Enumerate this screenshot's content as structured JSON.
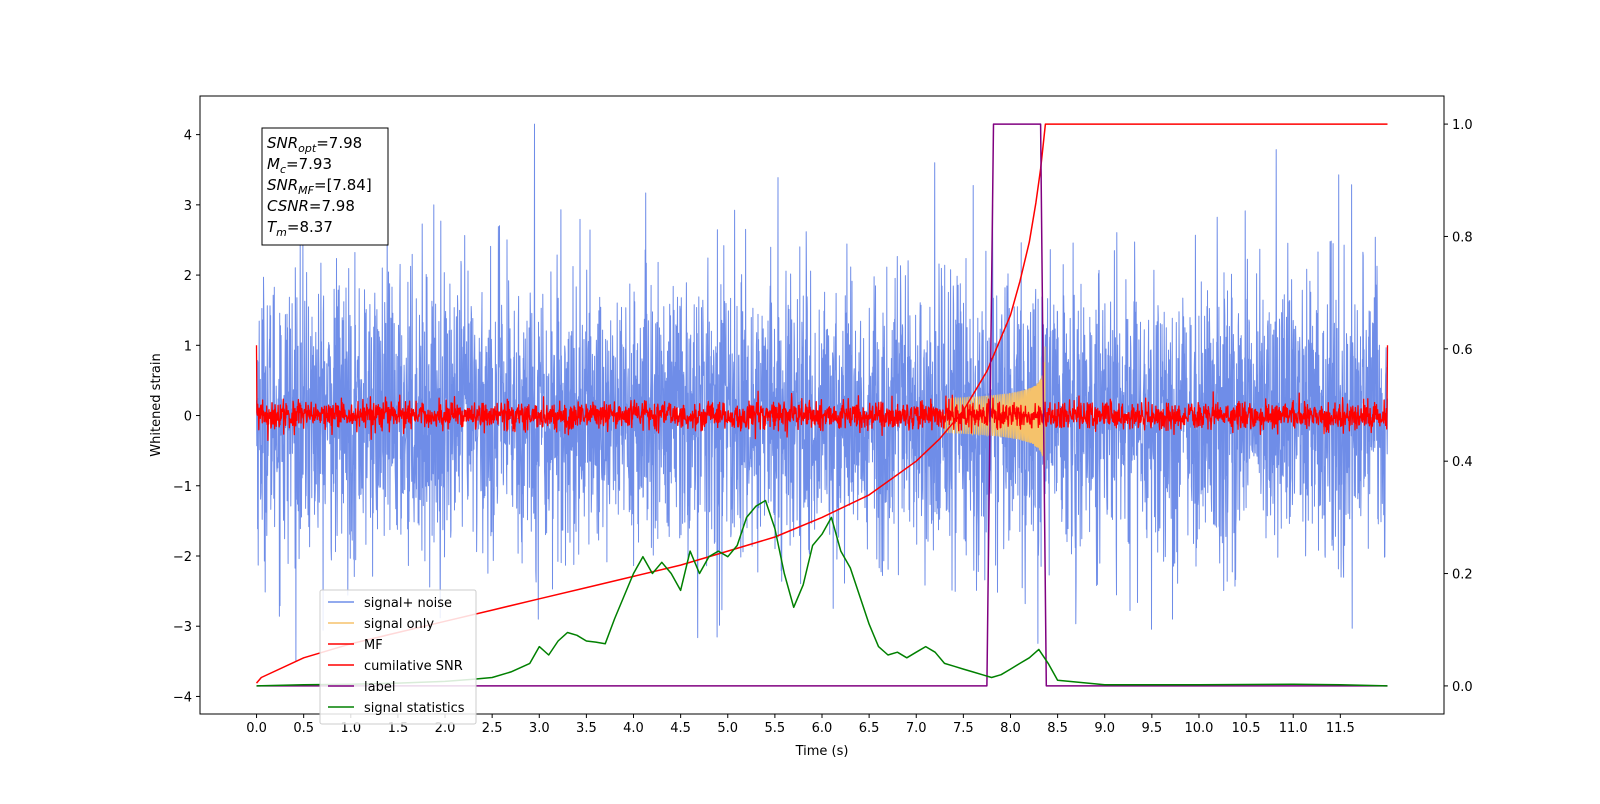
{
  "chart_data": {
    "type": "line",
    "xlabel": "Time (s)",
    "ylabel": "Whitened strain",
    "xlim": [
      -0.6,
      12.6
    ],
    "ylim": [
      -4.25,
      4.55
    ],
    "ylim_right": [
      -0.05,
      1.05
    ],
    "xticks": [
      0.0,
      0.5,
      1.0,
      1.5,
      2.0,
      2.5,
      3.0,
      3.5,
      4.0,
      4.5,
      5.0,
      5.5,
      6.0,
      6.5,
      7.0,
      7.5,
      8.0,
      8.5,
      9.0,
      9.5,
      10.0,
      10.5,
      11.0,
      11.5
    ],
    "xtick_labels": [
      "0.0",
      "0.5",
      "1.0",
      "1.5",
      "2.0",
      "2.5",
      "3.0",
      "3.5",
      "4.0",
      "4.5",
      "5.0",
      "5.5",
      "6.0",
      "6.5",
      "7.0",
      "7.5",
      "8.0",
      "8.5",
      "9.0",
      "9.5",
      "10.0",
      "10.5",
      "11.0",
      "11.5"
    ],
    "yticks_left": [
      4,
      3,
      2,
      1,
      0,
      -1,
      -2,
      -3,
      -4
    ],
    "ytick_labels_left": [
      "4",
      "3",
      "2",
      "1",
      "0",
      "−1",
      "−2",
      "−3",
      "−4"
    ],
    "yticks_right": [
      1.0,
      0.8,
      0.6,
      0.4,
      0.2,
      0.0
    ],
    "ytick_labels_right": [
      "1.0",
      "0.8",
      "0.6",
      "0.4",
      "0.2",
      "0.0"
    ],
    "legend_placement": "lower-left",
    "annotation": [
      {
        "sym": "SNR",
        "sub": "opt",
        "rest": "=7.98"
      },
      {
        "sym": "M",
        "sub": "c",
        "rest": "=7.93"
      },
      {
        "sym": "SNR",
        "sub": "MF",
        "rest": "=[7.84]"
      },
      {
        "sym": "CSNR",
        "sub": "",
        "rest": "=7.98"
      },
      {
        "sym": "T",
        "sub": "m",
        "rest": "=8.37"
      }
    ],
    "series": [
      {
        "name": "signal+ noise",
        "axis": "left",
        "color": "#6f8de8",
        "style": "noise",
        "x_range": [
          0.0,
          12.0
        ],
        "std": 1.0,
        "peak": {
          "x": 2.95,
          "y": 4.15
        }
      },
      {
        "name": "signal only",
        "axis": "left",
        "color": "#f5c26b",
        "style": "chirp",
        "x_range": [
          7.3,
          8.37
        ],
        "peak_amplitude": 1.0
      },
      {
        "name": "MF",
        "axis": "left",
        "color": "#ff0000",
        "style": "noise",
        "x_range": [
          0.0,
          12.0
        ],
        "std": 0.1,
        "edges": [
          1.0,
          1.0
        ]
      },
      {
        "name": "cumilative SNR",
        "axis": "right",
        "color": "#ff0000",
        "x": [
          0.0,
          0.05,
          0.5,
          1.0,
          1.5,
          2.0,
          2.5,
          3.0,
          3.5,
          4.0,
          4.5,
          5.0,
          5.5,
          6.0,
          6.5,
          7.0,
          7.25,
          7.5,
          7.75,
          8.0,
          8.1,
          8.2,
          8.27,
          8.32,
          8.37,
          12.0
        ],
        "values": [
          0.005,
          0.015,
          0.05,
          0.075,
          0.095,
          0.115,
          0.135,
          0.155,
          0.175,
          0.195,
          0.215,
          0.24,
          0.265,
          0.3,
          0.34,
          0.4,
          0.44,
          0.49,
          0.56,
          0.66,
          0.72,
          0.79,
          0.86,
          0.92,
          1.0,
          1.0
        ]
      },
      {
        "name": "label",
        "axis": "right",
        "color": "#800080",
        "x": [
          0.0,
          7.75,
          7.82,
          8.32,
          8.38,
          12.0
        ],
        "values": [
          0.0,
          0.0,
          1.0,
          1.0,
          0.0,
          0.0
        ]
      },
      {
        "name": "signal statistics",
        "axis": "right",
        "color": "#008000",
        "x": [
          0.0,
          0.5,
          1.0,
          1.5,
          2.0,
          2.3,
          2.5,
          2.7,
          2.9,
          3.0,
          3.1,
          3.2,
          3.3,
          3.4,
          3.5,
          3.6,
          3.7,
          3.8,
          3.9,
          4.0,
          4.1,
          4.2,
          4.3,
          4.4,
          4.5,
          4.6,
          4.7,
          4.8,
          4.9,
          5.0,
          5.1,
          5.2,
          5.3,
          5.4,
          5.5,
          5.6,
          5.7,
          5.8,
          5.9,
          6.0,
          6.1,
          6.2,
          6.3,
          6.4,
          6.5,
          6.6,
          6.7,
          6.8,
          6.9,
          7.0,
          7.1,
          7.2,
          7.3,
          7.4,
          7.5,
          7.6,
          7.7,
          7.8,
          7.9,
          8.0,
          8.1,
          8.2,
          8.3,
          8.4,
          8.5,
          9.0,
          10.0,
          11.0,
          11.5,
          12.0
        ],
        "values": [
          0.0,
          0.002,
          0.003,
          0.005,
          0.008,
          0.012,
          0.015,
          0.025,
          0.04,
          0.07,
          0.055,
          0.08,
          0.095,
          0.09,
          0.08,
          0.078,
          0.075,
          0.12,
          0.16,
          0.2,
          0.23,
          0.2,
          0.22,
          0.2,
          0.17,
          0.24,
          0.2,
          0.23,
          0.24,
          0.23,
          0.25,
          0.3,
          0.32,
          0.33,
          0.28,
          0.2,
          0.14,
          0.18,
          0.25,
          0.27,
          0.3,
          0.24,
          0.21,
          0.16,
          0.11,
          0.07,
          0.055,
          0.06,
          0.05,
          0.06,
          0.07,
          0.06,
          0.04,
          0.035,
          0.03,
          0.025,
          0.02,
          0.015,
          0.02,
          0.03,
          0.04,
          0.05,
          0.065,
          0.04,
          0.01,
          0.002,
          0.002,
          0.003,
          0.002,
          0.0
        ]
      }
    ]
  }
}
